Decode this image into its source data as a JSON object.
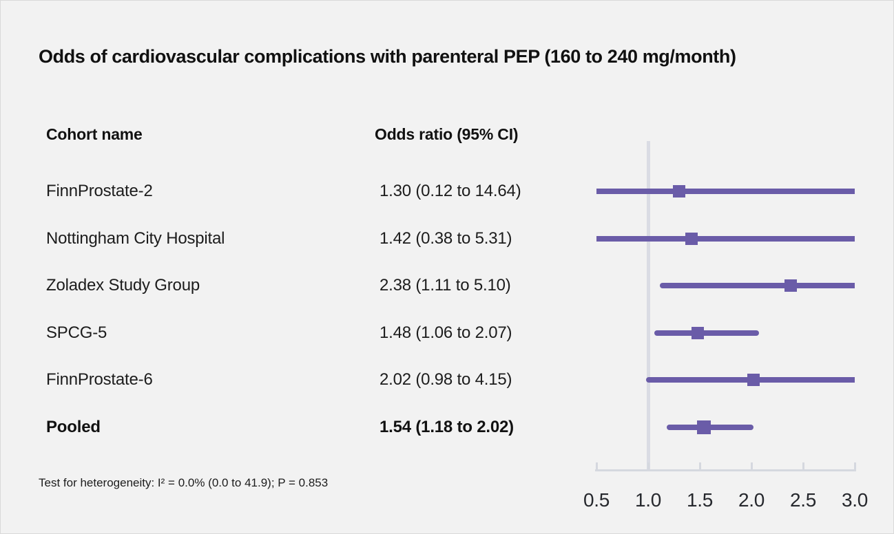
{
  "chart_data": {
    "type": "forest",
    "title": "Odds of cardiovascular complications with parenteral PEP (160 to 240 mg/month)",
    "columns": [
      "Cohort name",
      "Odds ratio (95% CI)"
    ],
    "rows": [
      {
        "cohort": "FinnProstate-2",
        "display": "1.30 (0.12 to 14.64)",
        "est": 1.3,
        "lo": 0.12,
        "hi": 14.64,
        "pooled": false
      },
      {
        "cohort": "Nottingham City Hospital",
        "display": "1.42 (0.38 to 5.31)",
        "est": 1.42,
        "lo": 0.38,
        "hi": 5.31,
        "pooled": false
      },
      {
        "cohort": "Zoladex Study Group",
        "display": "2.38 (1.11 to 5.10)",
        "est": 2.38,
        "lo": 1.11,
        "hi": 5.1,
        "pooled": false
      },
      {
        "cohort": "SPCG-5",
        "display": "1.48 (1.06 to 2.07)",
        "est": 1.48,
        "lo": 1.06,
        "hi": 2.07,
        "pooled": false
      },
      {
        "cohort": "FinnProstate-6",
        "display": "2.02 (0.98 to 4.15)",
        "est": 2.02,
        "lo": 0.98,
        "hi": 4.15,
        "pooled": false
      },
      {
        "cohort": "Pooled",
        "display": "1.54 (1.18 to 2.02)",
        "est": 1.54,
        "lo": 1.18,
        "hi": 2.02,
        "pooled": true
      }
    ],
    "xticks": [
      "0.5",
      "1.0",
      "1.5",
      "2.0",
      "2.5",
      "3.0"
    ],
    "xlim": [
      0.5,
      3.0
    ],
    "reference_value": 1.0,
    "footnote": "Test for heterogeneity: I² = 0.0% (0.0 to 41.9); P = 0.853",
    "colors": {
      "bar": "#6A5CA8",
      "reference_line": "#DADCE4",
      "axis": "#D5D8DF",
      "background": "#F2F2F2",
      "text": "#1C1C1C"
    },
    "legend": null,
    "grid": false
  }
}
